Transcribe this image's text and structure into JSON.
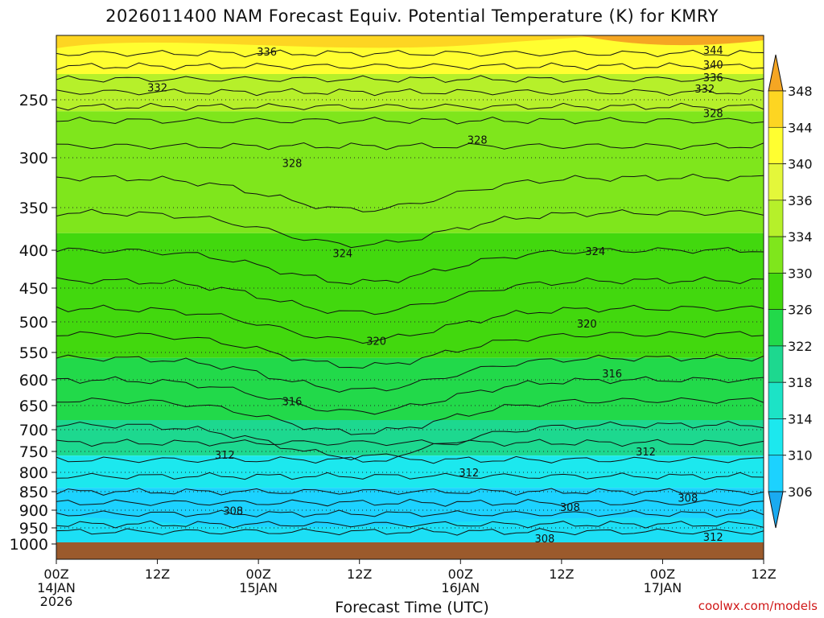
{
  "page": {
    "title": "2026011400 NAM Forecast Equiv. Potential Temperature (K) for KMRY",
    "credit": "coolwx.com/models"
  },
  "chart_data": {
    "type": "heatmap",
    "title": "2026011400 NAM Forecast Equiv. Potential Temperature (K) for KMRY",
    "xlabel": "Forecast Time (UTC)",
    "ylabel": "",
    "x_ticks": [
      {
        "hours": 0,
        "label": "00Z",
        "sub": [
          "14JAN",
          "2026"
        ]
      },
      {
        "hours": 12,
        "label": "12Z",
        "sub": []
      },
      {
        "hours": 24,
        "label": "00Z",
        "sub": [
          "15JAN"
        ]
      },
      {
        "hours": 36,
        "label": "12Z",
        "sub": []
      },
      {
        "hours": 48,
        "label": "00Z",
        "sub": [
          "16JAN"
        ]
      },
      {
        "hours": 60,
        "label": "12Z",
        "sub": []
      },
      {
        "hours": 72,
        "label": "00Z",
        "sub": [
          "17JAN"
        ]
      },
      {
        "hours": 84,
        "label": "12Z",
        "sub": []
      }
    ],
    "xlim": [
      0,
      84
    ],
    "y_ticks": [
      250,
      300,
      350,
      400,
      450,
      500,
      550,
      600,
      650,
      700,
      750,
      800,
      850,
      900,
      950,
      1000
    ],
    "ylim": [
      200,
      1000
    ],
    "colorbar": {
      "labels": [
        348,
        344,
        340,
        336,
        334,
        330,
        326,
        322,
        318,
        314,
        310,
        306
      ],
      "colors": [
        "#f5a623",
        "#fdd522",
        "#fffe30",
        "#e4f73a",
        "#b6f02a",
        "#7fe61c",
        "#42d80e",
        "#22d94a",
        "#1dd88f",
        "#1ce3c6",
        "#1ce8ee",
        "#1cd2ff",
        "#1aaaf0"
      ]
    },
    "contour_labels": [
      {
        "value": "344",
        "hours": 78,
        "hpa": 212
      },
      {
        "value": "340",
        "hours": 78,
        "hpa": 223
      },
      {
        "value": "336",
        "hours": 78,
        "hpa": 233
      },
      {
        "value": "332",
        "hours": 77,
        "hpa": 242
      },
      {
        "value": "328",
        "hours": 78,
        "hpa": 262
      },
      {
        "value": "336",
        "hours": 25,
        "hpa": 213
      },
      {
        "value": "332",
        "hours": 12,
        "hpa": 241
      },
      {
        "value": "328",
        "hours": 28,
        "hpa": 306
      },
      {
        "value": "328",
        "hours": 50,
        "hpa": 285
      },
      {
        "value": "324",
        "hours": 34,
        "hpa": 405
      },
      {
        "value": "324",
        "hours": 64,
        "hpa": 402
      },
      {
        "value": "320",
        "hours": 38,
        "hpa": 532
      },
      {
        "value": "320",
        "hours": 63,
        "hpa": 504
      },
      {
        "value": "316",
        "hours": 28,
        "hpa": 643
      },
      {
        "value": "316",
        "hours": 66,
        "hpa": 590
      },
      {
        "value": "312",
        "hours": 20,
        "hpa": 760
      },
      {
        "value": "312",
        "hours": 49,
        "hpa": 802
      },
      {
        "value": "312",
        "hours": 70,
        "hpa": 752
      },
      {
        "value": "308",
        "hours": 21,
        "hpa": 903
      },
      {
        "value": "308",
        "hours": 61,
        "hpa": 893
      },
      {
        "value": "308",
        "hours": 75,
        "hpa": 868
      },
      {
        "value": "308",
        "hours": 58,
        "hpa": 985
      },
      {
        "value": "312",
        "hours": 78,
        "hpa": 980
      }
    ],
    "background_bands": [
      {
        "from_hpa": 200,
        "to_hpa": 230,
        "color": "#fffe30"
      },
      {
        "from_hpa": 230,
        "to_hpa": 260,
        "color": "#b6f02a"
      },
      {
        "from_hpa": 260,
        "to_hpa": 380,
        "color": "#7fe61c"
      },
      {
        "from_hpa": 380,
        "to_hpa": 560,
        "color": "#42d80e"
      },
      {
        "from_hpa": 560,
        "to_hpa": 680,
        "color": "#22d94a"
      },
      {
        "from_hpa": 680,
        "to_hpa": 760,
        "color": "#1dd88f"
      },
      {
        "from_hpa": 760,
        "to_hpa": 840,
        "color": "#1ce8ee"
      },
      {
        "from_hpa": 840,
        "to_hpa": 1000,
        "color": "#1cd2ff"
      }
    ],
    "ground_color": "#9b5a2c"
  }
}
